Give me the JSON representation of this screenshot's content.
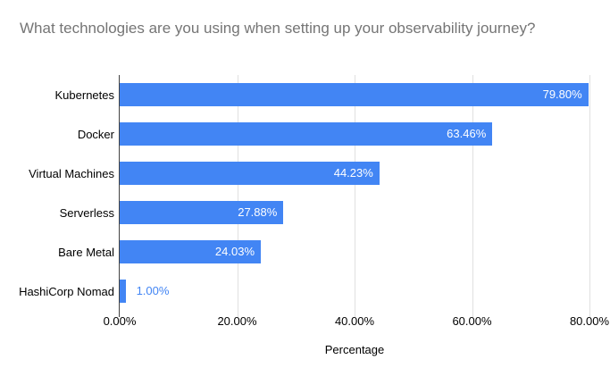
{
  "title": "What technologies are you using when setting up your observability journey?",
  "chart_data": {
    "type": "bar",
    "orientation": "horizontal",
    "title": "What technologies are you using when setting up your observability journey?",
    "categories": [
      "Kubernetes",
      "Docker",
      "Virtual Machines",
      "Serverless",
      "Bare Metal",
      "HashiCorp Nomad"
    ],
    "values": [
      79.8,
      63.46,
      44.23,
      27.88,
      24.03,
      1.0
    ],
    "value_labels": [
      "79.80%",
      "63.46%",
      "44.23%",
      "27.88%",
      "24.03%",
      "1.00%"
    ],
    "xlabel": "Percentage",
    "x_ticks": [
      {
        "label": "0.00%",
        "value": 0
      },
      {
        "label": "20.00%",
        "value": 20
      },
      {
        "label": "40.00%",
        "value": 40
      },
      {
        "label": "60.00%",
        "value": 60
      },
      {
        "label": "80.00%",
        "value": 80
      }
    ],
    "xlim": [
      0,
      80
    ],
    "grid": true,
    "legend": "none"
  },
  "colors": {
    "background": "#ffffff",
    "title_text": "#757575",
    "axis_text": "#000000",
    "gridline": "#e0e0e0",
    "axis_line": "#424242",
    "bar": "#4285f4",
    "value_label_inside": "#ffffff",
    "value_label_outside": "#4285f4"
  }
}
